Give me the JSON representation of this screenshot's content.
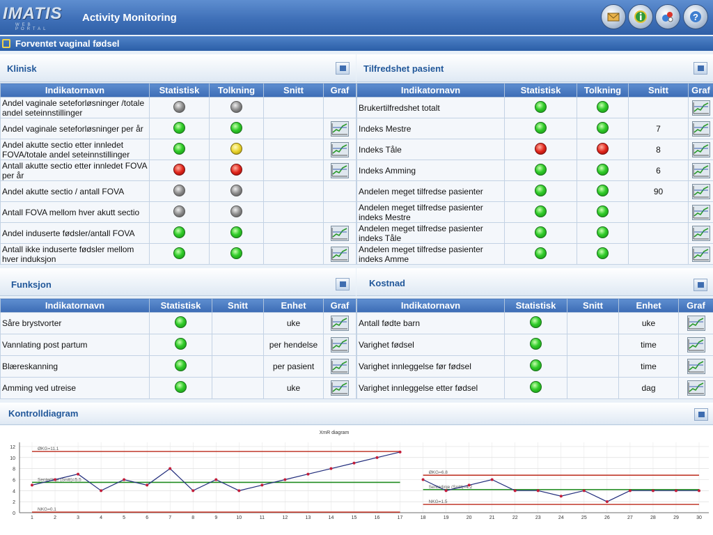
{
  "header": {
    "logo_text": "IMATIS",
    "logo_sub": "WEB PORTAL",
    "title": "Activity Monitoring",
    "icons": [
      "mail-icon",
      "info-icon",
      "network-icon",
      "help-icon"
    ]
  },
  "section": {
    "title": "Forventet vaginal fødsel"
  },
  "klinisk": {
    "title": "Klinisk",
    "headers": [
      "Indikatornavn",
      "Statistisk",
      "Tolkning",
      "Snitt",
      "Graf"
    ],
    "rows": [
      {
        "name": "Andel vaginale seteforløsninger /totale andel seteinnstillinger",
        "stat": "gray",
        "tolk": "gray",
        "snitt": "",
        "graf": false
      },
      {
        "name": "Andel vaginale seteforløsninger per år",
        "stat": "green",
        "tolk": "green",
        "snitt": "",
        "graf": true
      },
      {
        "name": "Andel akutte sectio etter innledet FOVA/totale andel seteinnstillinger",
        "stat": "green",
        "tolk": "yellow",
        "snitt": "",
        "graf": true
      },
      {
        "name": "Antall akutte sectio etter innledet FOVA per år",
        "stat": "red",
        "tolk": "red",
        "snitt": "",
        "graf": true
      },
      {
        "name": "Andel akutte sectio / antall FOVA",
        "stat": "gray",
        "tolk": "gray",
        "snitt": "",
        "graf": false
      },
      {
        "name": "Antall FOVA mellom hver akutt sectio",
        "stat": "gray",
        "tolk": "gray",
        "snitt": "",
        "graf": false
      },
      {
        "name": "Andel induserte fødsler/antall FOVA",
        "stat": "green",
        "tolk": "green",
        "snitt": "",
        "graf": true
      },
      {
        "name": "Antall ikke induserte fødsler mellom hver induksjon",
        "stat": "green",
        "tolk": "green",
        "snitt": "",
        "graf": true
      }
    ]
  },
  "tilfredshet": {
    "title": "Tilfredshet pasient",
    "headers": [
      "Indikatornavn",
      "Statistisk",
      "Tolkning",
      "Snitt",
      "Graf"
    ],
    "rows": [
      {
        "name": "Brukertilfredshet totalt",
        "stat": "green",
        "tolk": "green",
        "snitt": "",
        "graf": true
      },
      {
        "name": "Indeks Mestre",
        "stat": "green",
        "tolk": "green",
        "snitt": "7",
        "graf": true
      },
      {
        "name": "Indeks Tåle",
        "stat": "red",
        "tolk": "red",
        "snitt": "8",
        "graf": true
      },
      {
        "name": "Indeks Amming",
        "stat": "green",
        "tolk": "green",
        "snitt": "6",
        "graf": true
      },
      {
        "name": "Andelen meget tilfredse pasienter",
        "stat": "green",
        "tolk": "green",
        "snitt": "90",
        "graf": true
      },
      {
        "name": "Andelen meget tilfredse pasienter indeks Mestre",
        "stat": "green",
        "tolk": "green",
        "snitt": "",
        "graf": true
      },
      {
        "name": "Andelen meget tilfredse pasienter indeks Tåle",
        "stat": "green",
        "tolk": "green",
        "snitt": "",
        "graf": true
      },
      {
        "name": "Andelen meget tilfredse pasienter indeks Amme",
        "stat": "green",
        "tolk": "green",
        "snitt": "",
        "graf": true
      }
    ]
  },
  "funksjon": {
    "title": "Funksjon",
    "headers": [
      "Indikatornavn",
      "Statistisk",
      "Snitt",
      "Enhet",
      "Graf"
    ],
    "rows": [
      {
        "name": "Såre brystvorter",
        "stat": "green",
        "snitt": "",
        "enhet": "uke"
      },
      {
        "name": "Vannlating post partum",
        "stat": "green",
        "snitt": "",
        "enhet": "per hendelse"
      },
      {
        "name": "Blæreskanning",
        "stat": "green",
        "snitt": "",
        "enhet": "per pasient"
      },
      {
        "name": "Amming ved utreise",
        "stat": "green",
        "snitt": "",
        "enhet": "uke"
      }
    ]
  },
  "kostnad": {
    "title": "Kostnad",
    "headers": [
      "Indikatornavn",
      "Statistisk",
      "Snitt",
      "Enhet",
      "Graf"
    ],
    "rows": [
      {
        "name": "Antall fødte barn",
        "stat": "green",
        "snitt": "",
        "enhet": "uke"
      },
      {
        "name": "Varighet fødsel",
        "stat": "green",
        "snitt": "",
        "enhet": "time"
      },
      {
        "name": "Varighet innleggelse før fødsel",
        "stat": "green",
        "snitt": "",
        "enhet": "time"
      },
      {
        "name": "Varighet innleggelse etter fødsel",
        "stat": "green",
        "snitt": "",
        "enhet": "dag"
      }
    ]
  },
  "kontroll": {
    "title": "Kontrolldiagram"
  },
  "chart_data": {
    "type": "line",
    "title": "XmR diagram",
    "xlabel": "",
    "ylabel": "",
    "ylim": [
      0,
      12
    ],
    "yticks": [
      0,
      2,
      4,
      6,
      8,
      10,
      12
    ],
    "xlim": [
      1,
      30
    ],
    "grid": true,
    "series": [
      {
        "x": [
          1,
          2,
          3,
          4,
          5,
          6,
          7,
          8,
          9,
          10,
          11,
          12,
          13,
          14,
          15,
          16,
          17
        ],
        "values": [
          5,
          6,
          7,
          4,
          6,
          5,
          8,
          4,
          6,
          4,
          5,
          6,
          7,
          8,
          9,
          10,
          11
        ],
        "color": "#1f2a7a"
      },
      {
        "x": [
          18,
          19,
          20,
          21,
          22,
          23,
          24,
          25,
          26,
          27,
          28,
          29,
          30
        ],
        "values": [
          6,
          4,
          5,
          6,
          4,
          4,
          3,
          4,
          2,
          4,
          4,
          4,
          4
        ],
        "color": "#1f2a7a"
      }
    ],
    "reference_lines": [
      {
        "label": "ØKG=11.1",
        "value": 11.1,
        "x_range": [
          1,
          17
        ],
        "color": "#c0392b"
      },
      {
        "label": "Senterlinje (Snitt)=5.5",
        "value": 5.5,
        "x_range": [
          1,
          17
        ],
        "color": "#1e8a1e"
      },
      {
        "label": "NKG=0.1",
        "value": 0.1,
        "x_range": [
          1,
          17
        ],
        "color": "#c0392b"
      },
      {
        "label": "ØKG=6.8",
        "value": 6.8,
        "x_range": [
          18,
          30
        ],
        "color": "#c0392b"
      },
      {
        "label": "Senterlinje (Snitt)=4.2",
        "value": 4.2,
        "x_range": [
          18,
          30
        ],
        "color": "#1e8a1e"
      },
      {
        "label": "NKG=1.5",
        "value": 1.5,
        "x_range": [
          18,
          30
        ],
        "color": "#c0392b"
      }
    ]
  }
}
